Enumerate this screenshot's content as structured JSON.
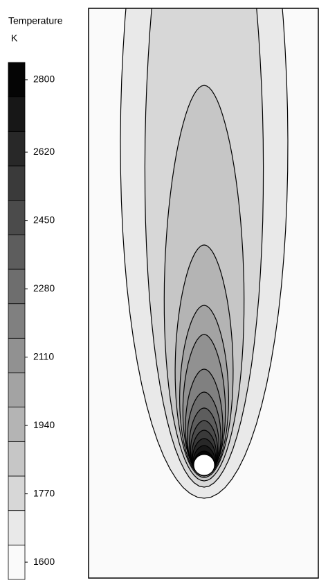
{
  "chart_data": {
    "type": "contour",
    "title": "Temperature",
    "unit": "K",
    "zlim": [
      1557,
      2843
    ],
    "zticks": [
      1600,
      1770,
      1940,
      2110,
      2280,
      2450,
      2620,
      2800
    ],
    "levels": 15
  }
}
